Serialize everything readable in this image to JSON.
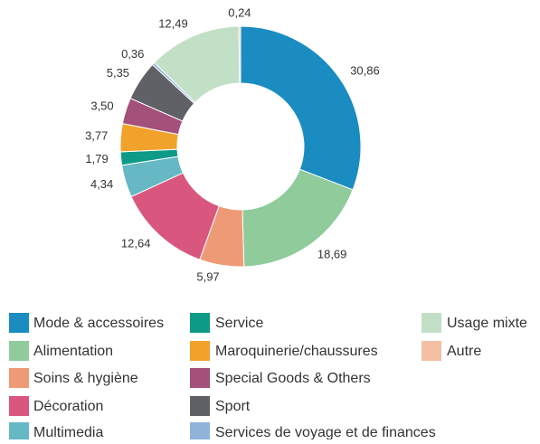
{
  "chart_data": {
    "type": "donut",
    "categories": [
      "Mode & accessoires",
      "Alimentation",
      "Soins & hygiène",
      "Décoration",
      "Multimedia",
      "Service",
      "Maroquinerie/chaussures",
      "Special Goods & Others",
      "Sport",
      "Services de voyage et de finances",
      "Usage mixte",
      "Autre"
    ],
    "values": [
      30.86,
      18.69,
      5.97,
      12.64,
      4.34,
      1.79,
      3.77,
      3.5,
      5.35,
      0.36,
      12.49,
      0.24
    ],
    "value_labels": [
      "30,86",
      "18,69",
      "5,97",
      "12,64",
      "4,34",
      "1,79",
      "3,77",
      "3,50",
      "5,35",
      "0,36",
      "12,49",
      "0,24"
    ],
    "colors": [
      "#1a8cc1",
      "#8fcb9b",
      "#ef9a76",
      "#d9577f",
      "#66b8c4",
      "#0d9a86",
      "#f0a22b",
      "#a3507a",
      "#5f6166",
      "#8fb3d9",
      "#c2e0c6",
      "#f4bfa0"
    ]
  }
}
